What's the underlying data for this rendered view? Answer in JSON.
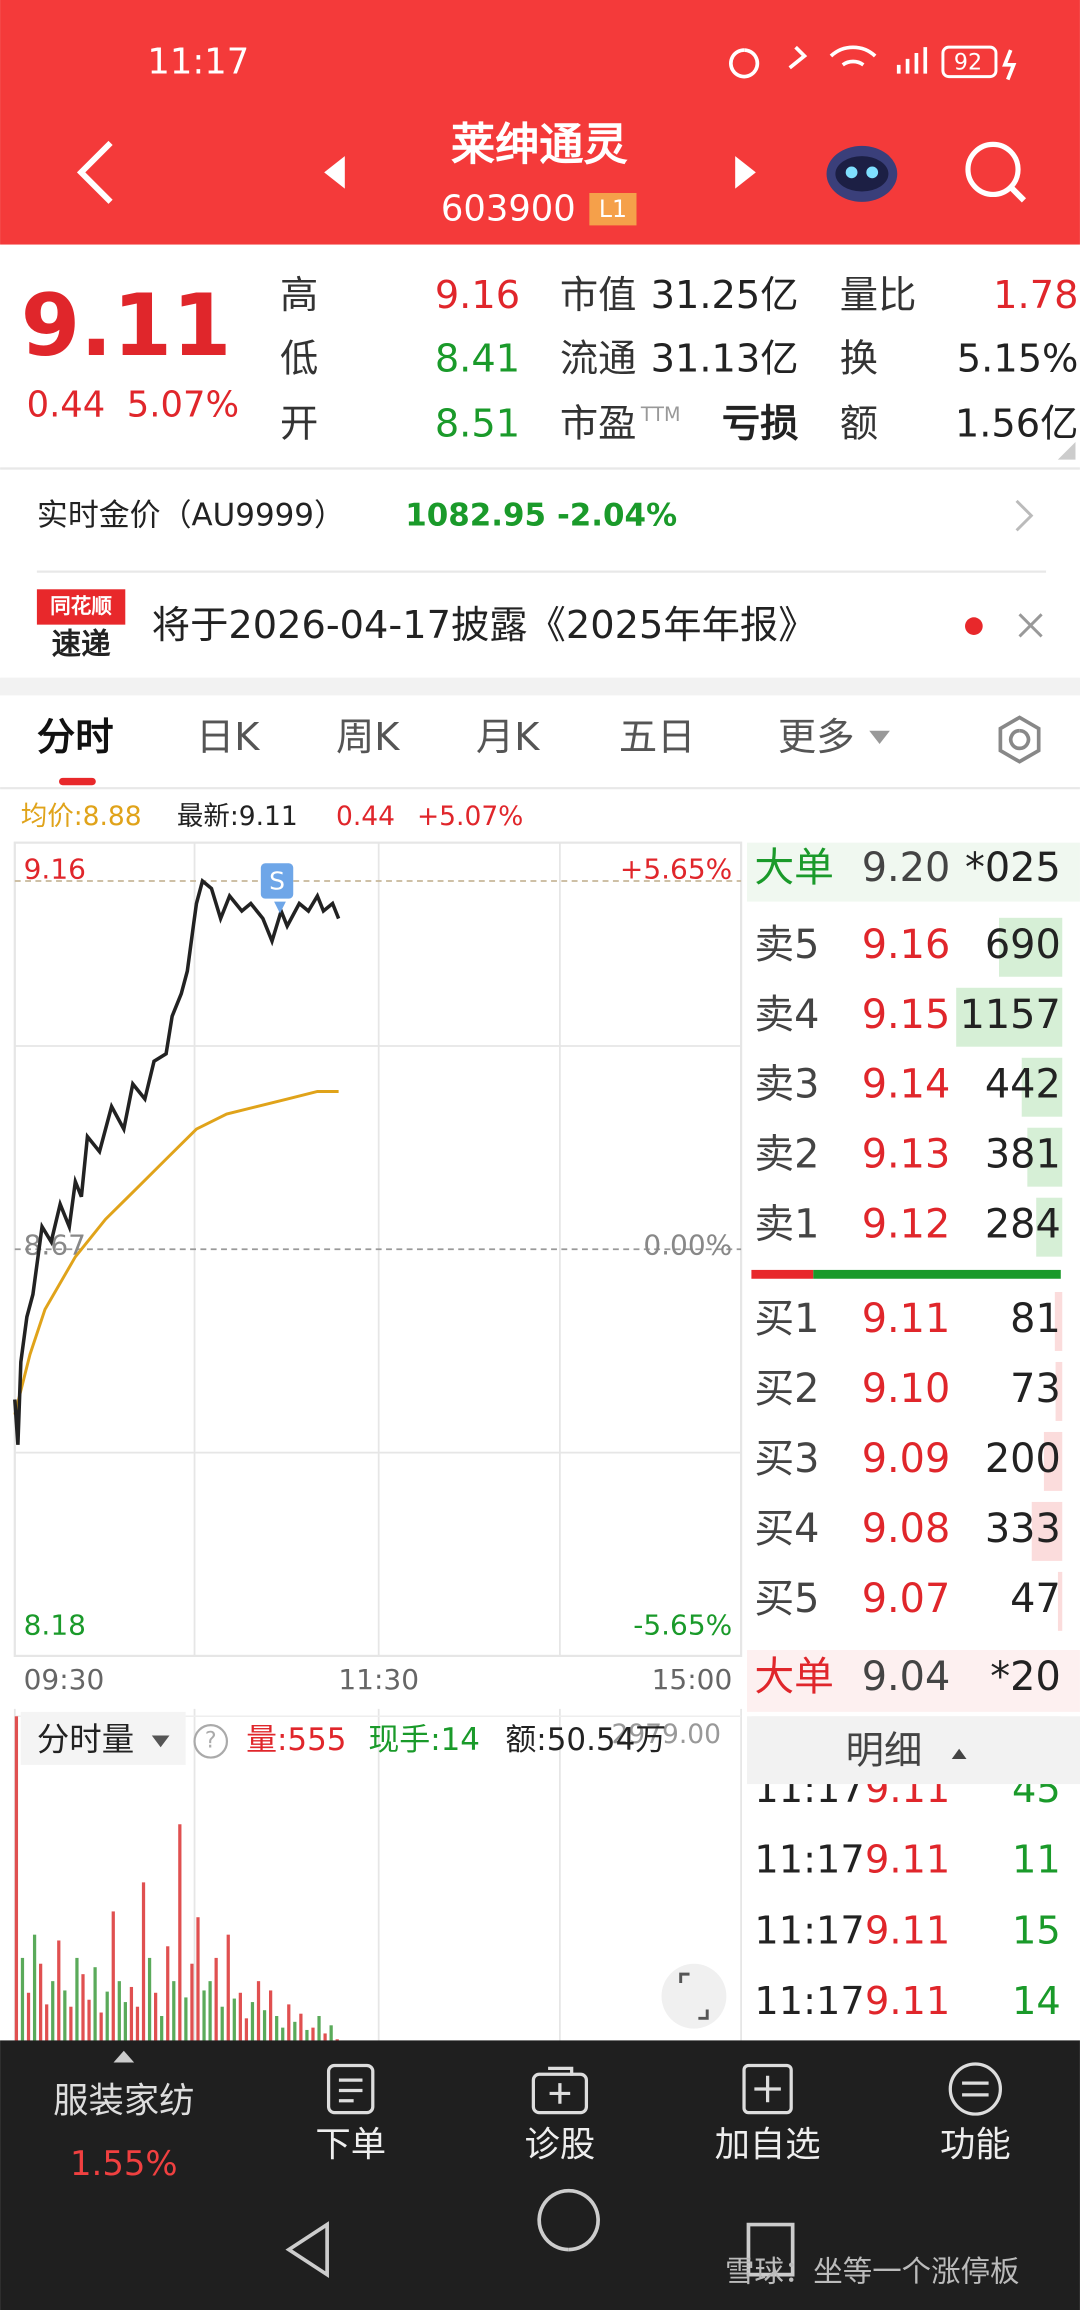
{
  "status_bar": {
    "time": "11:17",
    "battery": "92"
  },
  "header": {
    "title": "莱绅通灵",
    "code": "603900",
    "badge": "L1"
  },
  "quote": {
    "price": "9.11",
    "change": "0.44",
    "change_pct": "5.07%",
    "stats": [
      {
        "label": "高",
        "value": "9.16",
        "color": "#e0262b"
      },
      {
        "label": "低",
        "value": "8.41",
        "color": "#1a9a2a"
      },
      {
        "label": "开",
        "value": "8.51",
        "color": "#1a9a2a"
      },
      {
        "label": "市值",
        "value": "31.25亿",
        "color": "#222222"
      },
      {
        "label": "流通",
        "value": "31.13亿",
        "color": "#222222"
      },
      {
        "label": "市盈",
        "sup": "TTM",
        "value": "亏损",
        "color": "#222222"
      },
      {
        "label": "量比",
        "value": "1.78",
        "color": "#e0262b"
      },
      {
        "label": "换",
        "value": "5.15%",
        "color": "#222222"
      },
      {
        "label": "额",
        "value": "1.56亿",
        "color": "#222222"
      }
    ]
  },
  "gold": {
    "label": "实时金价（AU9999）",
    "value": "1082.95",
    "change": "-2.04%"
  },
  "notice": {
    "logo_top": "同花顺",
    "logo_bottom": "速递",
    "text": "将于2026-04-17披露《2025年年报》"
  },
  "tabs": [
    "分时",
    "日K",
    "周K",
    "月K",
    "五日",
    "更多"
  ],
  "chart_info": {
    "avg": "均价:8.88",
    "latest": "最新:9.11",
    "change": "0.44",
    "change_pct": "+5.07%"
  },
  "intraday": {
    "price_labels": [
      9.16,
      8.67,
      8.18
    ],
    "pct_labels": [
      "+5.65%",
      "0.00%",
      "-5.65%"
    ],
    "label_colors": [
      "#e0262b",
      "#888888",
      "#1a9a2a"
    ],
    "time_labels": [
      "09:30",
      "11:30",
      "15:00"
    ],
    "xlim": [
      0,
      240
    ],
    "signal": "S",
    "minutes": [
      0,
      1,
      2,
      4,
      6,
      9,
      12,
      15,
      18,
      20,
      22,
      24,
      28,
      32,
      36,
      39,
      43,
      46,
      50,
      52,
      55,
      57,
      59,
      60,
      62,
      65,
      68,
      71,
      75,
      78,
      82,
      85,
      88,
      90,
      94,
      97,
      100,
      102,
      105,
      107
    ],
    "price": [
      8.47,
      8.41,
      8.52,
      8.58,
      8.61,
      8.7,
      8.68,
      8.73,
      8.7,
      8.76,
      8.74,
      8.82,
      8.8,
      8.86,
      8.83,
      8.89,
      8.87,
      8.92,
      8.93,
      8.98,
      9.01,
      9.04,
      9.1,
      9.13,
      9.16,
      9.15,
      9.11,
      9.14,
      9.12,
      9.13,
      9.11,
      9.08,
      9.12,
      9.1,
      9.13,
      9.12,
      9.14,
      9.12,
      9.13,
      9.11
    ],
    "avg_minutes": [
      0,
      5,
      10,
      20,
      30,
      40,
      50,
      60,
      70,
      80,
      90,
      100,
      107
    ],
    "avg": [
      8.45,
      8.53,
      8.59,
      8.66,
      8.71,
      8.75,
      8.79,
      8.83,
      8.85,
      8.86,
      8.87,
      8.88,
      8.88
    ],
    "price_color": "#222222",
    "avg_color": "#e0a31a"
  },
  "order_book": {
    "big_top": {
      "label": "大单",
      "price": "9.20",
      "volume": "*025"
    },
    "asks": [
      {
        "label": "卖5",
        "price": "9.16",
        "volume": 690
      },
      {
        "label": "卖4",
        "price": "9.15",
        "volume": 1157
      },
      {
        "label": "卖3",
        "price": "9.14",
        "volume": 442
      },
      {
        "label": "卖2",
        "price": "9.13",
        "volume": 381
      },
      {
        "label": "卖1",
        "price": "9.12",
        "volume": 284
      }
    ],
    "bids": [
      {
        "label": "买1",
        "price": "9.11",
        "volume": 81
      },
      {
        "label": "买2",
        "price": "9.10",
        "volume": 73
      },
      {
        "label": "买3",
        "price": "9.09",
        "volume": 200
      },
      {
        "label": "买4",
        "price": "9.08",
        "volume": 333
      },
      {
        "label": "买5",
        "price": "9.07",
        "volume": 47
      }
    ],
    "big_bottom": {
      "label": "大单",
      "price": "9.04",
      "volume": "*20"
    },
    "detail_tab": "明细",
    "trades": [
      {
        "time": "11:17",
        "price": "9.11",
        "volume": 45
      },
      {
        "time": "11:17",
        "price": "9.11",
        "volume": 11
      },
      {
        "time": "11:17",
        "price": "9.11",
        "volume": 15
      },
      {
        "time": "11:17",
        "price": "9.11",
        "volume": 14
      }
    ]
  },
  "volume": {
    "title": "分时量",
    "help": "?",
    "volume": "量:555",
    "hand": "现手:14",
    "amount": "额:50.54万",
    "ylim": [
      0,
      2979
    ],
    "ticks": [
      {
        "value": 2979,
        "label": "2979.00"
      }
    ],
    "xlim": [
      0,
      240
    ],
    "up_color": "#e05050",
    "down_color": "#5aaa5a",
    "minutes": [
      0,
      2,
      4,
      6,
      8,
      10,
      12,
      14,
      16,
      18,
      20,
      22,
      24,
      26,
      28,
      30,
      32,
      34,
      36,
      38,
      40,
      42,
      44,
      46,
      48,
      50,
      52,
      54,
      56,
      58,
      60,
      62,
      64,
      66,
      68,
      70,
      72,
      74,
      76,
      78,
      80,
      82,
      84,
      86,
      88,
      90,
      92,
      94,
      96,
      98,
      100,
      102,
      104,
      106
    ],
    "values": [
      2979,
      900,
      600,
      1100,
      850,
      500,
      700,
      1050,
      620,
      480,
      900,
      760,
      540,
      820,
      430,
      610,
      1300,
      700,
      520,
      650,
      480,
      1550,
      900,
      600,
      400,
      1000,
      700,
      2050,
      560,
      850,
      1250,
      620,
      700,
      900,
      480,
      1100,
      550,
      600,
      380,
      520,
      700,
      450,
      620,
      400,
      300,
      500,
      350,
      420,
      280,
      300,
      400,
      250,
      320,
      200
    ],
    "up": [
      true,
      false,
      true,
      false,
      true,
      true,
      false,
      true,
      false,
      true,
      false,
      true,
      true,
      false,
      true,
      false,
      true,
      false,
      false,
      true,
      true,
      true,
      false,
      true,
      false,
      true,
      false,
      true,
      false,
      true,
      true,
      false,
      false,
      true,
      false,
      true,
      false,
      true,
      true,
      false,
      true,
      false,
      true,
      false,
      false,
      true,
      false,
      true,
      false,
      true,
      false,
      true,
      false,
      true
    ]
  },
  "bottom_nav": {
    "sector": "服装家纺",
    "sector_pct": "1.55%",
    "items": [
      "下单",
      "诊股",
      "加自选",
      "功能"
    ]
  },
  "watermark": "雪球：坐等一个涨停板"
}
